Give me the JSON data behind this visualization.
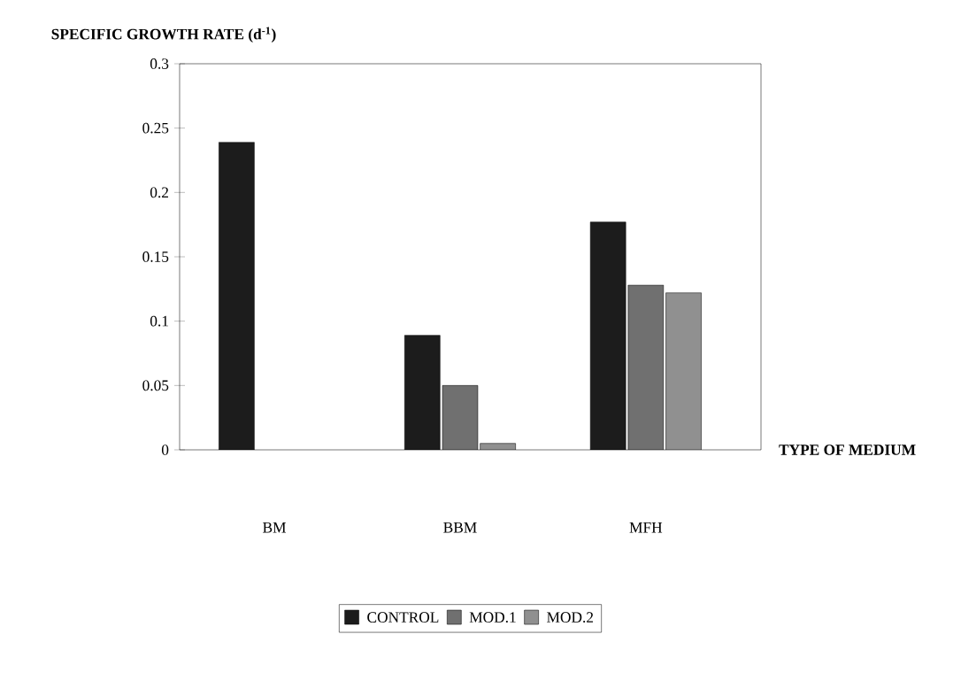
{
  "chart_data": {
    "type": "bar",
    "xlabel": "TYPE OF MEDIUM",
    "ylabel": "SPECIFIC GROWTH RATE (d$^{-1}$)",
    "categories": [
      "BM",
      "BBM",
      "MFH"
    ],
    "series": [
      {
        "name": "CONTROL",
        "color": "#1c1c1c",
        "values": [
          0.239,
          0.089,
          0.177
        ]
      },
      {
        "name": "MOD.1",
        "color": "#707070",
        "values": [
          null,
          0.05,
          0.128
        ]
      },
      {
        "name": "MOD.2",
        "color": "#909090",
        "values": [
          null,
          0.005,
          0.122
        ]
      }
    ],
    "ylim": [
      0,
      0.3
    ],
    "yticks": [
      0,
      0.05,
      0.1,
      0.15,
      0.2,
      0.25,
      0.3
    ],
    "grid": false,
    "legend": "bottom"
  }
}
